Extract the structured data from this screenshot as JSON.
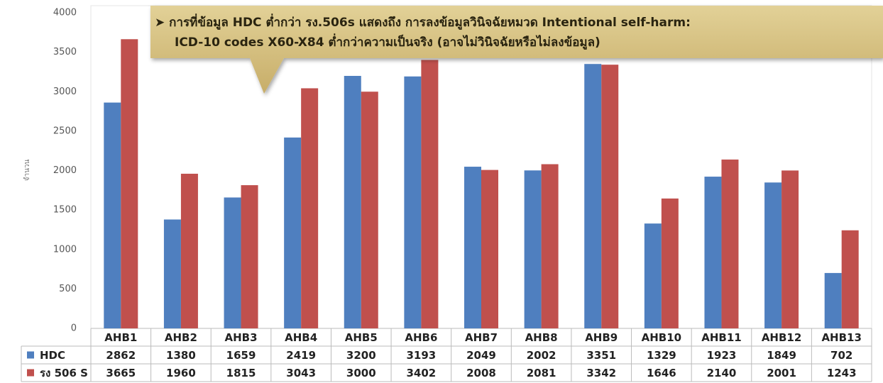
{
  "chart_data": {
    "type": "bar",
    "annotation": [
      "➤  การที่ข้อมูล HDC ต่ำกว่า รง.506s แสดงถึง การลงข้อมูลวินิจฉัยหมวด Intentional self-harm:",
      "ICD-10 codes X60-X84 ต่ำกว่าความเป็นจริง (อาจไม่วินิจฉัยหรือไม่ลงข้อมูล)"
    ],
    "y_label": "จำนวน",
    "categories": [
      "AHB1",
      "AHB2",
      "AHB3",
      "AHB4",
      "AHB5",
      "AHB6",
      "AHB7",
      "AHB8",
      "AHB9",
      "AHB10",
      "AHB11",
      "AHB12",
      "AHB13"
    ],
    "series": [
      {
        "name": "HDC",
        "color": "#4f7fbf",
        "values": [
          2862,
          1380,
          1659,
          2419,
          3200,
          3193,
          2049,
          2002,
          3351,
          1329,
          1923,
          1849,
          702
        ]
      },
      {
        "name": "รง 506 S",
        "color": "#c0504d",
        "values": [
          3665,
          1960,
          1815,
          3043,
          3000,
          3402,
          2008,
          2081,
          3342,
          1646,
          2140,
          2001,
          1243
        ]
      }
    ],
    "ylim": [
      0,
      4000
    ],
    "yticks": [
      0,
      500,
      1000,
      1500,
      2000,
      2500,
      3000,
      3500,
      4000
    ],
    "grid": false
  }
}
